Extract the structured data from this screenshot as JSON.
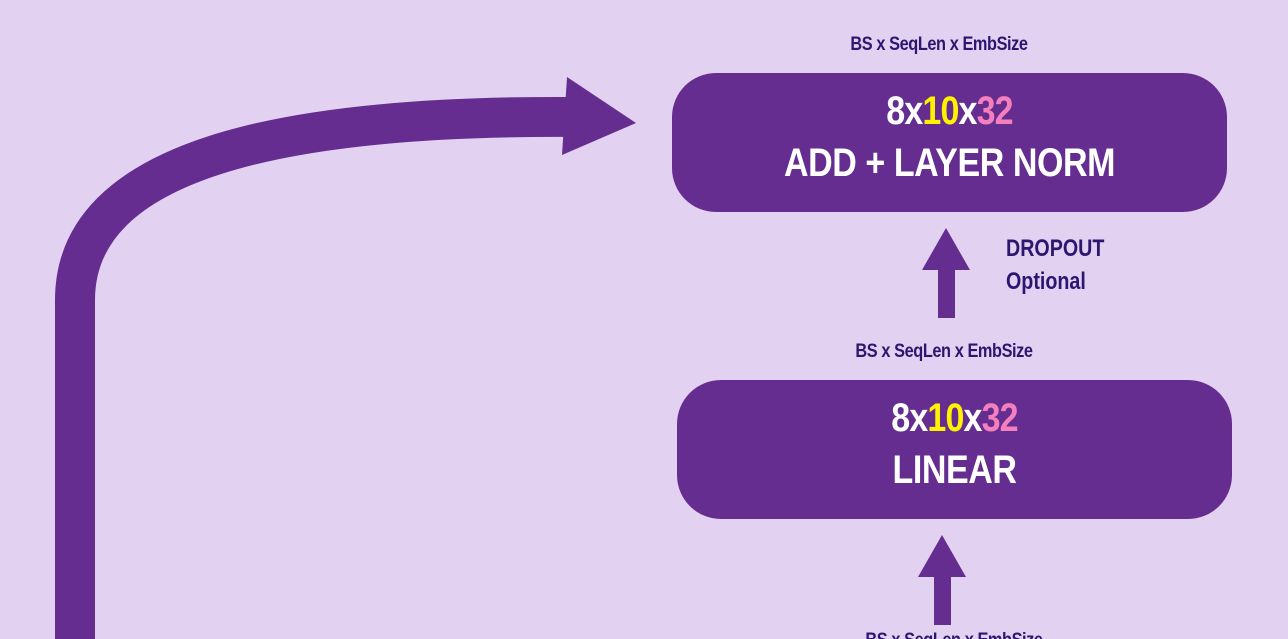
{
  "colors": {
    "background": "#e3d1f1",
    "block": "#652d90",
    "text_dark": "#2e1670",
    "text_light": "#ffffff",
    "seq_len_highlight": "#fff200",
    "emb_size_highlight": "#f47fbe"
  },
  "top_block": {
    "shape_label": "BS x SeqLen x EmbSize",
    "dims": {
      "batch": "8",
      "sep1": "x",
      "seq_len": "10",
      "sep2": "x",
      "emb_size": "32"
    },
    "title": "ADD + LAYER NORM"
  },
  "dropout_note": {
    "line1": "DROPOUT",
    "line2": "Optional"
  },
  "linear_block": {
    "shape_label": "BS x SeqLen x EmbSize",
    "dims": {
      "batch": "8",
      "sep1": "x",
      "seq_len": "10",
      "sep2": "x",
      "emb_size": "32"
    },
    "title": "LINEAR"
  },
  "bottom_block": {
    "shape_label": "BS x SeqLen x EmbSize"
  }
}
